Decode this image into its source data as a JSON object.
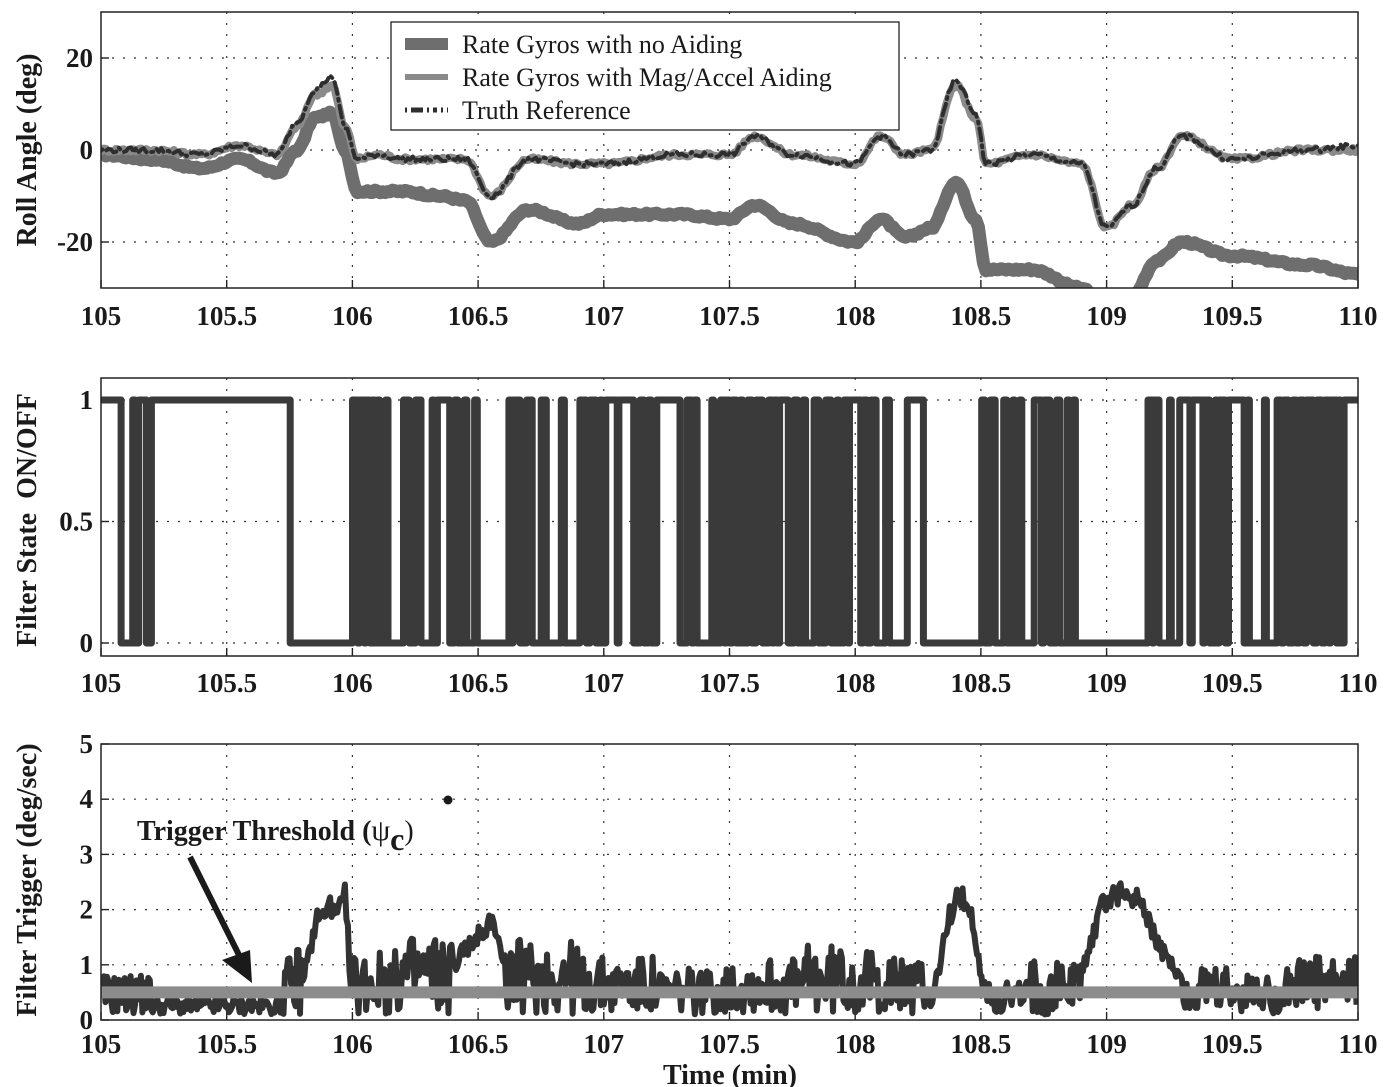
{
  "chart_data": [
    {
      "type": "line",
      "title": "",
      "xlabel": "",
      "ylabel": "Roll Angle (deg)",
      "xlim": [
        105,
        110
      ],
      "ylim": [
        -30,
        30
      ],
      "xticks": [
        "105",
        "105.5",
        "106",
        "106.5",
        "107",
        "107.5",
        "108",
        "108.5",
        "109",
        "109.5",
        "110"
      ],
      "yticks": [
        "20",
        "0",
        "-20"
      ],
      "grid": true,
      "legend_position": "upper center",
      "x": [
        105.0,
        105.2,
        105.4,
        105.55,
        105.7,
        105.78,
        105.85,
        105.92,
        105.97,
        106.02,
        106.1,
        106.2,
        106.35,
        106.45,
        106.55,
        106.7,
        106.9,
        107.0,
        107.3,
        107.5,
        107.6,
        107.75,
        108.0,
        108.1,
        108.2,
        108.3,
        108.4,
        108.48,
        108.52,
        108.7,
        108.9,
        109.0,
        109.1,
        109.2,
        109.3,
        109.5,
        109.8,
        110.0
      ],
      "series": [
        {
          "name": "Rate Gyros with no Aiding",
          "values": [
            -1,
            -2,
            -4,
            -2,
            -5,
            0,
            7,
            8,
            0,
            -9,
            -9,
            -9,
            -10,
            -11,
            -20,
            -13,
            -16,
            -14,
            -14,
            -15,
            -12,
            -16,
            -20,
            -15,
            -19,
            -17,
            -7,
            -15,
            -26,
            -26,
            -30,
            -36,
            -32,
            -24,
            -20,
            -23,
            -25,
            -27
          ]
        },
        {
          "name": "Rate Gyros with Mag/Accel Aiding",
          "values": [
            0,
            0,
            -1,
            1,
            -1,
            5,
            12,
            14,
            5,
            -2,
            -1,
            -2,
            -2,
            -2,
            -10,
            -2,
            -3,
            -3,
            -1,
            -1,
            3,
            -1,
            -3,
            3,
            -1,
            0,
            14,
            7,
            -3,
            -1,
            -3,
            -17,
            -12,
            -4,
            3,
            -2,
            0,
            0
          ]
        },
        {
          "name": "Truth Reference",
          "values": [
            0,
            0,
            -1,
            1,
            -1,
            6,
            13,
            16,
            5,
            -2,
            -1,
            -2,
            -2,
            -2,
            -10,
            -2,
            -3,
            -3,
            -1,
            -1,
            3,
            -1,
            -3,
            3,
            -1,
            0,
            15,
            8,
            -3,
            -1,
            -3,
            -17,
            -12,
            -4,
            3,
            -2,
            0,
            1
          ]
        }
      ]
    },
    {
      "type": "line",
      "title": "",
      "xlabel": "",
      "ylabel": "Filter State  ON/OFF",
      "xlim": [
        105,
        110
      ],
      "ylim": [
        -0.05,
        1.1
      ],
      "xticks": [
        "105",
        "105.5",
        "106",
        "106.5",
        "107",
        "107.5",
        "108",
        "108.5",
        "109",
        "109.5",
        "110"
      ],
      "yticks": [
        "1",
        "0.5",
        "0"
      ],
      "grid": true,
      "step": true,
      "off_intervals": [
        [
          105.08,
          105.15
        ],
        [
          105.18,
          105.2
        ],
        [
          105.75,
          106.0
        ],
        [
          106.02,
          106.1
        ],
        [
          106.16,
          106.2
        ],
        [
          106.5,
          106.65
        ],
        [
          106.68,
          106.74
        ],
        [
          106.92,
          106.99
        ],
        [
          107.04,
          107.08
        ],
        [
          107.18,
          107.2
        ],
        [
          107.72,
          107.77
        ],
        [
          107.98,
          108.02
        ],
        [
          108.1,
          108.14
        ],
        [
          108.27,
          108.5
        ],
        [
          108.88,
          109.15
        ],
        [
          109.2,
          109.26
        ],
        [
          109.68,
          109.72
        ],
        [
          109.86,
          109.93
        ]
      ],
      "series": [
        {
          "name": "Filter State",
          "values_description": "binary 0/1 switching; dense toggling between 106-108.2, 108.5-108.9, 109.15-109.95; steady ON 105.2-105.75"
        }
      ]
    },
    {
      "type": "line",
      "title": "",
      "xlabel": "Time (min)",
      "ylabel": "Filter Trigger (deg/sec)",
      "xlim": [
        105,
        110
      ],
      "ylim": [
        0,
        5
      ],
      "xticks": [
        "105",
        "105.5",
        "106",
        "106.5",
        "107",
        "107.5",
        "108",
        "108.5",
        "109",
        "109.5",
        "110"
      ],
      "yticks": [
        "5",
        "4",
        "3",
        "2",
        "1",
        "0"
      ],
      "grid": true,
      "annotations": [
        "Trigger Threshold (ψ̇c)"
      ],
      "x": [
        105.0,
        105.1,
        105.2,
        105.4,
        105.6,
        105.72,
        105.78,
        105.82,
        105.86,
        105.9,
        105.94,
        105.97,
        106.0,
        106.2,
        106.3,
        106.4,
        106.55,
        106.6,
        106.75,
        106.9,
        107.0,
        107.2,
        107.5,
        107.8,
        107.9,
        108.0,
        108.1,
        108.3,
        108.37,
        108.41,
        108.45,
        108.52,
        108.7,
        108.9,
        108.98,
        109.05,
        109.12,
        109.3,
        109.5,
        109.7,
        109.9,
        110.0
      ],
      "series": [
        {
          "name": "Filter Trigger",
          "values": [
            0.2,
            0.7,
            0.3,
            0.2,
            0.3,
            0.2,
            1.0,
            1.2,
            2.1,
            2.2,
            2.3,
            2.7,
            0.3,
            1.1,
            1.4,
            1.2,
            2.0,
            1.3,
            1.3,
            0.5,
            1.0,
            0.8,
            0.6,
            1.0,
            1.2,
            1.1,
            1.0,
            0.4,
            2.0,
            2.5,
            2.3,
            0.6,
            0.4,
            1.0,
            2.3,
            2.5,
            2.4,
            0.8,
            0.7,
            0.5,
            1.0,
            0.3
          ]
        },
        {
          "name": "Trigger Threshold",
          "values_description": "constant",
          "value": 0.5
        }
      ]
    }
  ],
  "plots": {
    "top": {
      "ylabel": "Roll Angle (deg)",
      "yticks": [
        {
          "label": "20",
          "v": 20
        },
        {
          "label": "0",
          "v": 0
        },
        {
          "label": "-20",
          "v": -20
        }
      ],
      "legend": [
        "Rate Gyros with no Aiding",
        "Rate Gyros with Mag/Accel Aiding",
        "Truth Reference"
      ]
    },
    "middle": {
      "ylabel": "Filter State  ON/OFF",
      "yticks": [
        {
          "label": "1",
          "v": 1
        },
        {
          "label": "0.5",
          "v": 0.5
        },
        {
          "label": "0",
          "v": 0
        }
      ]
    },
    "bottom": {
      "ylabel": "Filter Trigger (deg/sec)",
      "xlabel": "Time (min)",
      "yticks": [
        {
          "label": "5",
          "v": 5
        },
        {
          "label": "4",
          "v": 4
        },
        {
          "label": "3",
          "v": 3
        },
        {
          "label": "2",
          "v": 2
        },
        {
          "label": "1",
          "v": 1
        },
        {
          "label": "0",
          "v": 0
        }
      ],
      "annotation": "Trigger Threshold (",
      "annotation_symbol": "ψ",
      "annotation_sub": "c",
      "annotation_close": ")"
    },
    "xticks": [
      "105",
      "105.5",
      "106",
      "106.5",
      "107",
      "107.5",
      "108",
      "108.5",
      "109",
      "109.5",
      "110"
    ],
    "colors": {
      "no_aiding": "#6e6e6e",
      "aided": "#8a8a8a",
      "truth": "#2e2e2e",
      "state": "#3a3a3a",
      "trigger": "#333333",
      "threshold": "#8c8c8c"
    }
  }
}
